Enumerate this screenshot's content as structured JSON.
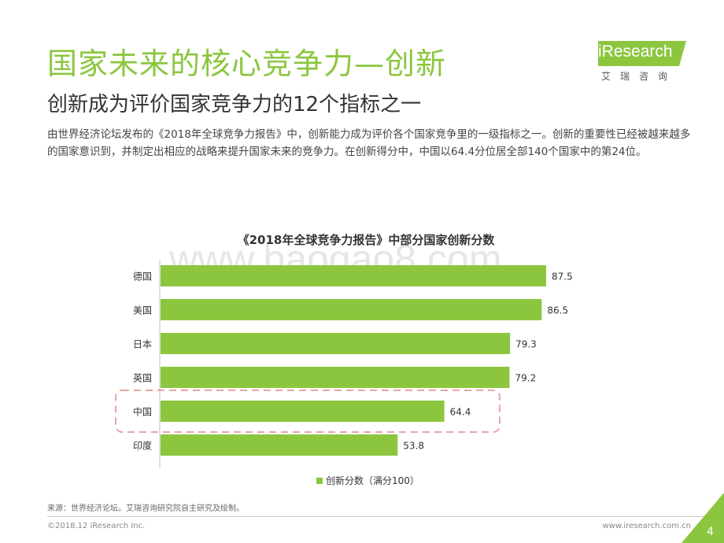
{
  "header": {
    "title": "国家未来的核心竞争力—创新",
    "subtitle": "创新成为评价国家竞争力的12个指标之一",
    "intro": "由世界经济论坛发布的《2018年全球竞争力报告》中，创新能力成为评价各个国家竞争里的一级指标之一。创新的重要性已经被越来越多的国家意识到，并制定出相应的战略来提升国家未来的竞争力。在创新得分中，中国以64.4分位居全部140个国家中的第24位。"
  },
  "logo": {
    "text": "iResearch",
    "cn": "艾瑞咨询"
  },
  "watermark": "www.baogao8.com",
  "chart_data": {
    "type": "bar",
    "orientation": "horizontal",
    "title": "《2018年全球竞争力报告》中部分国家创新分数",
    "categories": [
      "德国",
      "美国",
      "日本",
      "英国",
      "中国",
      "印度"
    ],
    "series": [
      {
        "name": "创新分数（满分100）",
        "values": [
          87.5,
          86.5,
          79.3,
          79.2,
          64.4,
          53.8
        ]
      }
    ],
    "xlim": [
      0,
      100
    ],
    "highlight": "中国",
    "grid": false,
    "legend": "bottom",
    "bar_color": "#8cc63f",
    "highlight_color": "#e8a5a5"
  },
  "footer": {
    "source": "来源：世界经济论坛。艾瑞咨询研究院自主研究及绘制。",
    "copyright": "©2018.12 iResearch Inc.",
    "url": "www.iresearch.com.cn",
    "page": "4"
  }
}
